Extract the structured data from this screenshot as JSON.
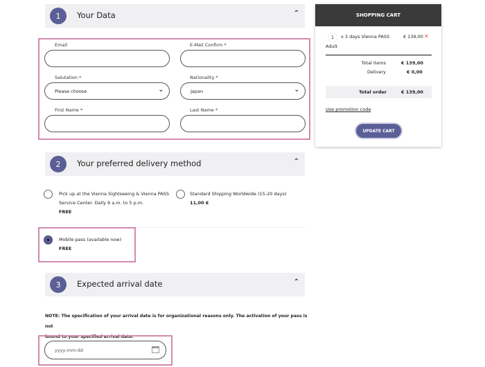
{
  "sections": [
    {
      "number": "1",
      "title": "Your Data"
    },
    {
      "number": "2",
      "title": "Your preferred delivery method"
    },
    {
      "number": "3",
      "title": "Expected arrival date"
    }
  ],
  "form": {
    "email_label": "Email",
    "email_value": "",
    "email_confirm_label": "E-Mail Confirm *",
    "email_confirm_value": "",
    "salutation_label": "Salutation *",
    "salutation_value": "Please choose",
    "nationality_label": "Nationality *",
    "nationality_value": "Japan",
    "first_name_label": "First Name *",
    "first_name_value": "",
    "last_name_label": "Last Name *",
    "last_name_value": ""
  },
  "delivery": {
    "options": [
      {
        "line1": "Pick up at the Vienna Sightseeing & Vienna PASS",
        "line2": "Service Center. Daily 9 a.m. to 5 p.m.",
        "price": "FREE",
        "selected": false
      },
      {
        "line1": "Standard Shipping Worldwide (15-20 days)",
        "price": "11,00 €",
        "selected": false
      },
      {
        "line1": "Mobile pass (available now)",
        "price": "FREE",
        "selected": true
      }
    ]
  },
  "arrival": {
    "note_line1": "NOTE: The specification of your arrival date is for organizational reasons only. The activation of your pass is not",
    "note_line2": "bound to your specified arrival date.",
    "date_placeholder": "yyyy-mm-dd"
  },
  "cart": {
    "title": "SHOPPING CART",
    "quantity": "1",
    "item": "x 3 days Vienna PASS",
    "item_price": "€ 139,00",
    "item_type": "Adult",
    "total_items_label": "Total items",
    "total_items": "€ 139,00",
    "delivery_label": "Delivery",
    "delivery": "€ 0,00",
    "total_order_label": "Total order",
    "total_order": "€ 139,00",
    "promo_link": "Use promotion code",
    "update_button": "UPDATE CART"
  },
  "colors": {
    "accent": "#5b5f97",
    "highlight": "#d18aae",
    "header_dark": "#3a3a3a",
    "remove": "#d9534f"
  }
}
